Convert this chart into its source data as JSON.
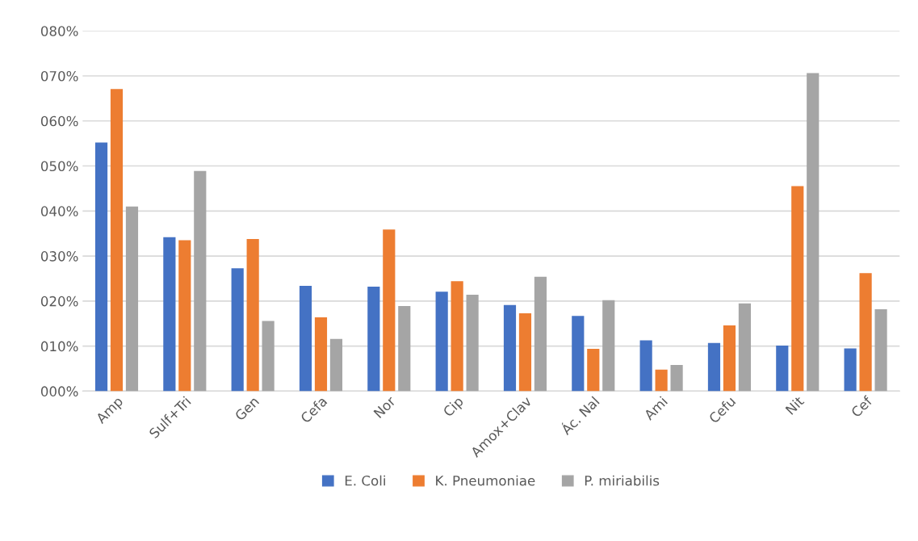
{
  "chart_data": {
    "type": "bar",
    "categories": [
      "Amp",
      "Sulf+Tri",
      "Gen",
      "Cefa",
      "Nor",
      "Cip",
      "Amox+Clav",
      "Ác. Nal",
      "Ami",
      "Cefu",
      "Nit",
      "Cef"
    ],
    "series": [
      {
        "name": "E. Coli",
        "color": "#4472c4",
        "values": [
          55.2,
          34.2,
          27.3,
          23.4,
          23.2,
          22.1,
          19.1,
          16.7,
          11.3,
          10.7,
          10.1,
          9.5
        ]
      },
      {
        "name": "K. Pneumoniae",
        "color": "#ed7d31",
        "values": [
          67.1,
          33.5,
          33.8,
          16.4,
          35.9,
          24.4,
          17.3,
          9.4,
          4.8,
          14.6,
          45.5,
          26.2
        ]
      },
      {
        "name": "P. miriabilis",
        "color": "#a5a5a5",
        "values": [
          41.0,
          48.9,
          15.6,
          11.6,
          18.9,
          21.4,
          25.4,
          20.2,
          5.8,
          19.5,
          70.6,
          18.2
        ]
      }
    ],
    "ylim": [
      0,
      80
    ],
    "yticks": [
      {
        "value": 0,
        "label": "000%"
      },
      {
        "value": 10,
        "label": "010%"
      },
      {
        "value": 20,
        "label": "020%"
      },
      {
        "value": 30,
        "label": "030%"
      },
      {
        "value": 40,
        "label": "040%"
      },
      {
        "value": 50,
        "label": "050%"
      },
      {
        "value": 60,
        "label": "060%"
      },
      {
        "value": 70,
        "label": "070%"
      },
      {
        "value": 80,
        "label": "080%"
      }
    ],
    "grid": "y",
    "legend": "bottom"
  }
}
